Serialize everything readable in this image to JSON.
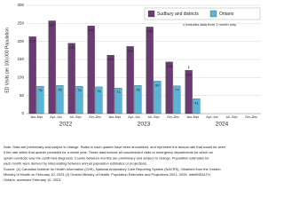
{
  "chart_data": {
    "type": "bar",
    "y_label": "ED Visits per 100,000 Population",
    "categories": [
      "Jan–Mar",
      "Apr–Jun",
      "Jul–Sep",
      "Oct–Dec",
      "Jan–Mar",
      "Apr–Jun",
      "Jul–Sep",
      "Oct–Dec",
      "Jan–Mar",
      "Apr–Jun",
      "Jul–Sep",
      "Oct–Dec"
    ],
    "x_groups": [
      "2022",
      "2023",
      "2024"
    ],
    "series": [
      {
        "name": "Sudbury and districts",
        "color": "#6c3a74",
        "values": [
          213,
          257,
          195,
          243,
          162,
          186,
          240,
          143,
          120,
          null,
          null,
          null
        ],
        "flags": [
          null,
          null,
          null,
          null,
          null,
          null,
          null,
          null,
          "‡",
          null,
          null,
          null
        ]
      },
      {
        "name": "Ontario",
        "color": "#5ab4d8",
        "values": [
          76,
          78,
          76,
          74,
          71,
          78,
          90,
          77,
          41,
          null,
          null,
          null
        ]
      }
    ],
    "annotation": "‡ Includes data from 1 month only",
    "ylim": [
      0,
      300
    ],
    "yticks": [
      0,
      50,
      100,
      150,
      200,
      250,
      300
    ],
    "grid": true,
    "legend": "top-right",
    "notes": [
      "Note: Data are preliminary and subject to change. Rates in each quarter have been annualized, and represent the annual rate that would be seen",
      "if the rate within that quarter persisted for a whole year. These data include all unscheduled visits to emergency departments for which an",
      "opioid overdose was the confirmed diagnosis. Counts between months are preliminary and subject to change. Population estimates for",
      "each month were derived by interpolating between annual population estimates or projections.",
      "Source: (1) Canadian Institute for Health Information (CIHI), National Ambulatory Care Reporting System (NACRS), Obtained from the Ontario",
      "Ministry of Health on February 10, 2023 (2) Ontario Ministry of Health, Population Estimates and Projections 2021- 2025, IntelliHEALTH",
      "Ontario, accessed February 10, 2023."
    ]
  }
}
